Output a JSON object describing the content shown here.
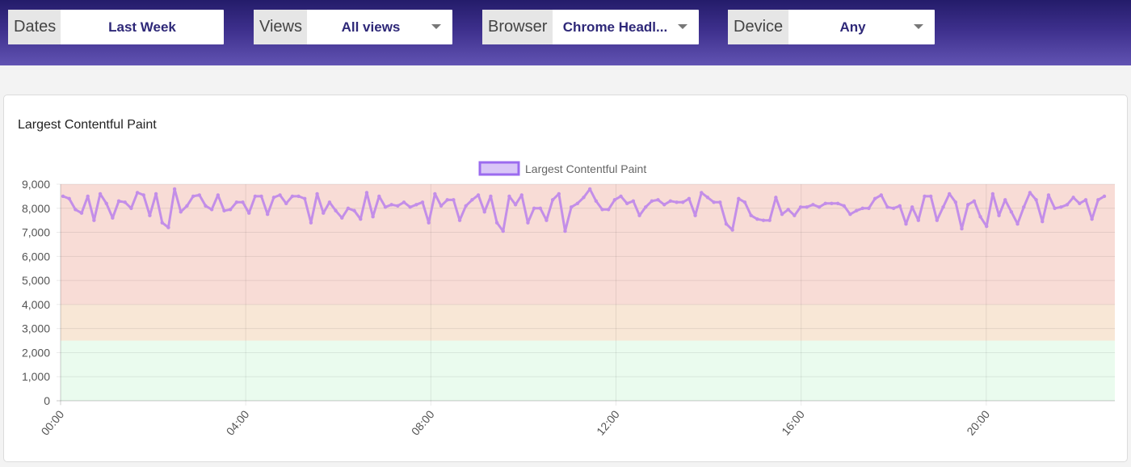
{
  "filters": [
    {
      "label": "Dates",
      "value": "Last Week",
      "dropdown": false
    },
    {
      "label": "Views",
      "value": "All views",
      "dropdown": true
    },
    {
      "label": "Browser",
      "value": "Chrome Headl...",
      "dropdown": true
    },
    {
      "label": "Device",
      "value": "Any",
      "dropdown": true
    }
  ],
  "card": {
    "title": "Largest Contentful Paint"
  },
  "chart_data": {
    "type": "line",
    "title": "Largest Contentful Paint",
    "legend": {
      "label": "Largest Contentful Paint",
      "position": "top-center"
    },
    "ylim": [
      0,
      9000
    ],
    "yticks": [
      "0",
      "1,000",
      "2,000",
      "3,000",
      "4,000",
      "5,000",
      "6,000",
      "7,000",
      "8,000",
      "9,000"
    ],
    "xticks": [
      "00:00",
      "04:00",
      "08:00",
      "12:00",
      "16:00",
      "20:00"
    ],
    "xlim_hours": [
      0,
      24
    ],
    "grid": true,
    "bands": [
      {
        "from": 0,
        "to": 2500,
        "color": "#eafbee"
      },
      {
        "from": 2500,
        "to": 4000,
        "color": "#f8e7d6"
      },
      {
        "from": 4000,
        "to": 9000,
        "color": "#f8dcd6"
      }
    ],
    "series": [
      {
        "name": "Largest Contentful Paint",
        "color": "#c38ee8",
        "values": [
          8500,
          8400,
          7950,
          7800,
          8500,
          7500,
          8600,
          8200,
          7600,
          8300,
          8250,
          8000,
          8650,
          8550,
          7700,
          8600,
          7400,
          7200,
          8800,
          7850,
          8100,
          8500,
          8550,
          8100,
          7950,
          8550,
          7900,
          7950,
          8250,
          8250,
          7800,
          8500,
          8500,
          7750,
          8450,
          8550,
          8200,
          8500,
          8500,
          8400,
          7400,
          8600,
          7800,
          8250,
          7900,
          7600,
          8000,
          7900,
          7550,
          8650,
          7650,
          8500,
          8050,
          8150,
          8100,
          8250,
          8050,
          8150,
          8250,
          7400,
          8600,
          8100,
          8350,
          8350,
          7500,
          8100,
          8350,
          8550,
          7850,
          8500,
          7400,
          7050,
          8500,
          8150,
          8550,
          7400,
          8000,
          8000,
          7500,
          8350,
          8600,
          7050,
          8050,
          8200,
          8450,
          8800,
          8300,
          7950,
          7950,
          8350,
          8500,
          8200,
          8300,
          7700,
          8050,
          8300,
          8350,
          8150,
          8300,
          8250,
          8250,
          8400,
          7700,
          8650,
          8450,
          8250,
          8250,
          7350,
          7100,
          8400,
          8250,
          7700,
          7550,
          7500,
          7500,
          8450,
          7750,
          7950,
          7700,
          8050,
          8050,
          8150,
          8050,
          8200,
          8200,
          8200,
          8100,
          7750,
          7900,
          8000,
          8000,
          8400,
          8550,
          8050,
          8000,
          8100,
          7350,
          8050,
          7500,
          8500,
          8500,
          7500,
          8050,
          8600,
          8250,
          7150,
          8150,
          8300,
          7650,
          7250,
          8600,
          7700,
          8350,
          7850,
          7350,
          8050,
          8650,
          8350,
          7450,
          8550,
          8000,
          8050,
          8150,
          8450,
          8200,
          8350,
          7550,
          8350,
          8500
        ]
      }
    ]
  }
}
